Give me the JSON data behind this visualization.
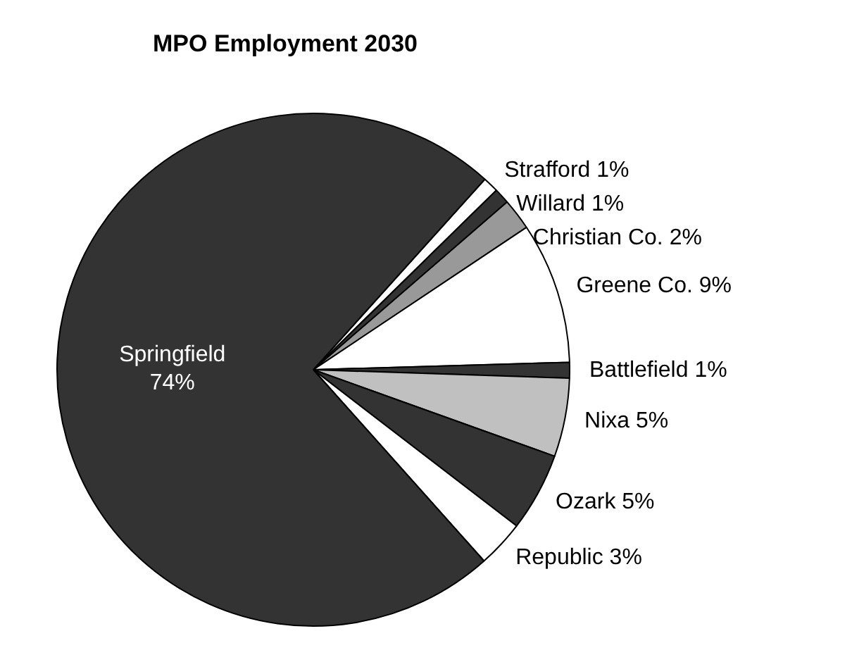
{
  "chart_data": {
    "type": "pie",
    "title": "MPO Employment 2030",
    "categories": [
      "Strafford",
      "Willard",
      "Christian Co.",
      "Greene Co.",
      "Battlefield",
      "Nixa",
      "Ozark",
      "Republic",
      "Springfield"
    ],
    "values": [
      1,
      1,
      2,
      9,
      1,
      5,
      5,
      3,
      74
    ],
    "value_labels": [
      "1%",
      "1%",
      "2%",
      "9%",
      "1%",
      "5%",
      "5%",
      "3%",
      "74%"
    ],
    "colors": [
      "#ffffff",
      "#333333",
      "#999999",
      "#ffffff",
      "#333333",
      "#c0c0c0",
      "#333333",
      "#ffffff",
      "#333333"
    ],
    "legend": false
  }
}
